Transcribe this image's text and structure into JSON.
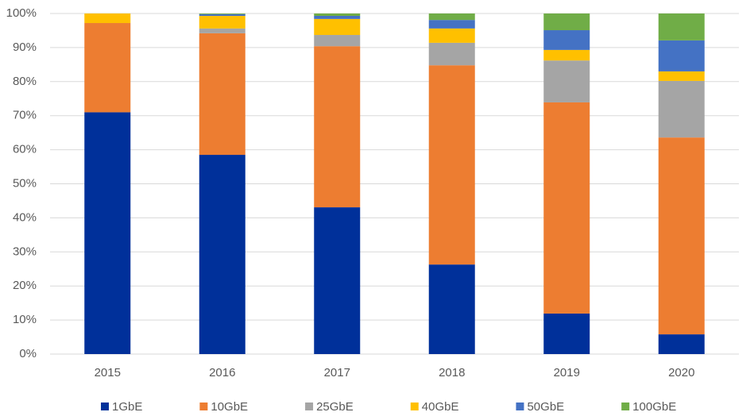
{
  "chart_data": {
    "type": "stacked-bar",
    "categories": [
      "2015",
      "2016",
      "2017",
      "2018",
      "2019",
      "2020"
    ],
    "series": [
      {
        "name": "1GbE",
        "color": "#00309a",
        "values": [
          71,
          58.5,
          43.1,
          26.3,
          11.9,
          5.8
        ]
      },
      {
        "name": "10GbE",
        "color": "#ed7d31",
        "values": [
          26.2,
          35.7,
          47.3,
          58.5,
          62,
          57.8
        ]
      },
      {
        "name": "25GbE",
        "color": "#a5a5a5",
        "values": [
          0,
          1.4,
          3.3,
          6.6,
          12.3,
          16.6
        ]
      },
      {
        "name": "40GbE",
        "color": "#ffc000",
        "values": [
          2.8,
          3.7,
          4.7,
          4.2,
          3.1,
          2.8
        ]
      },
      {
        "name": "50GbE",
        "color": "#4472c4",
        "values": [
          0,
          0.5,
          0.9,
          2.5,
          5.8,
          9.1
        ]
      },
      {
        "name": "100GbE",
        "color": "#70ad47",
        "values": [
          0,
          0.2,
          0.7,
          1.9,
          4.9,
          7.9
        ]
      }
    ],
    "ylim": [
      0,
      100
    ],
    "yticks": [
      {
        "value": 0,
        "label": "0%"
      },
      {
        "value": 10,
        "label": "10%"
      },
      {
        "value": 20,
        "label": "20%"
      },
      {
        "value": 30,
        "label": "30%"
      },
      {
        "value": 40,
        "label": "40%"
      },
      {
        "value": 50,
        "label": "50%"
      },
      {
        "value": 60,
        "label": "60%"
      },
      {
        "value": 70,
        "label": "70%"
      },
      {
        "value": 80,
        "label": "80%"
      },
      {
        "value": 90,
        "label": "90%"
      },
      {
        "value": 100,
        "label": "100%"
      }
    ],
    "grid": true,
    "legend": "bottom"
  }
}
